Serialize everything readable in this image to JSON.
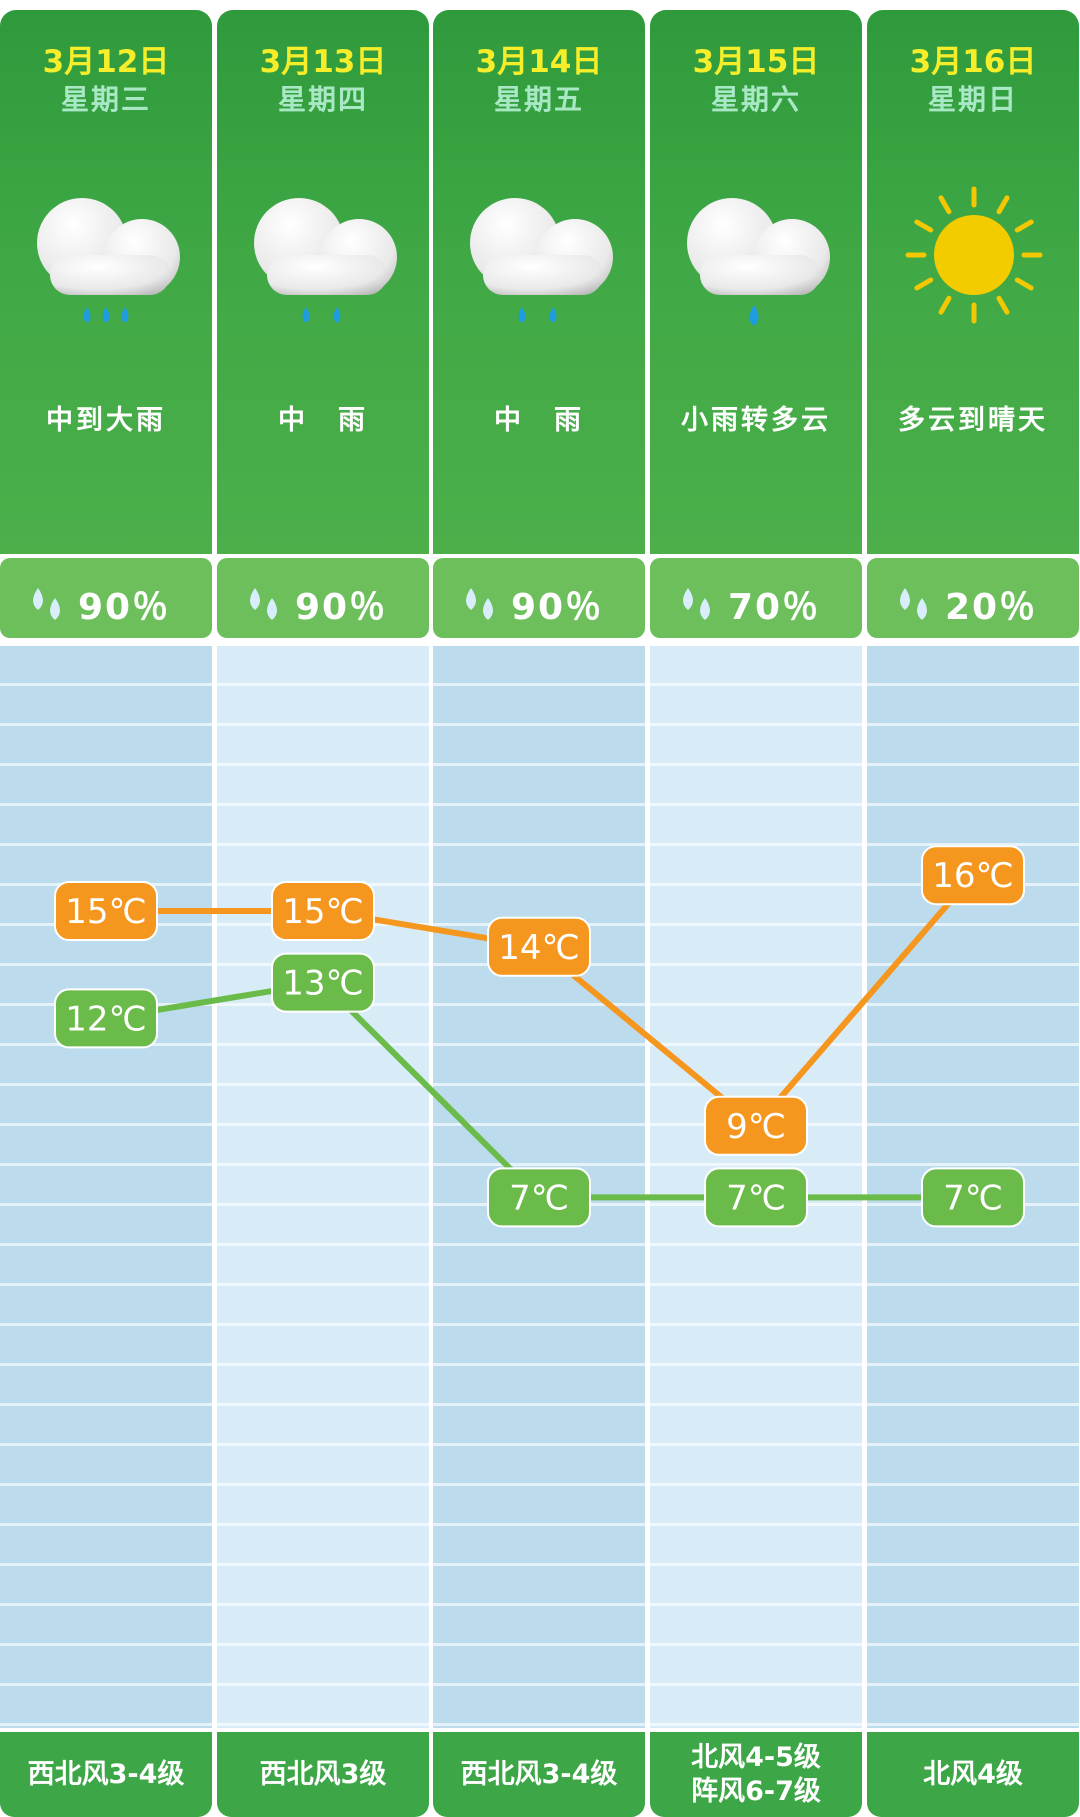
{
  "days": [
    {
      "date": "3月12日",
      "weekday": "星期三",
      "weather": "中到大雨",
      "icon": "cloud-heavy-rain-icon",
      "precip": "90％",
      "wind": [
        "西北风3-4级"
      ]
    },
    {
      "date": "3月13日",
      "weekday": "星期四",
      "weather": "中　雨",
      "icon": "cloud-rain-icon",
      "precip": "90％",
      "wind": [
        "西北风3级"
      ]
    },
    {
      "date": "3月14日",
      "weekday": "星期五",
      "weather": "中　雨",
      "icon": "cloud-rain-icon",
      "precip": "90％",
      "wind": [
        "西北风3-4级"
      ]
    },
    {
      "date": "3月15日",
      "weekday": "星期六",
      "weather": "小雨转多云",
      "icon": "cloud-light-rain-icon",
      "precip": "70％",
      "wind": [
        "北风4-5级",
        "阵风6-7级"
      ]
    },
    {
      "date": "3月16日",
      "weekday": "星期日",
      "weather": "多云到晴天",
      "icon": "sun-icon",
      "precip": "20％",
      "wind": [
        "北风4级"
      ]
    }
  ],
  "chart_data": {
    "type": "line",
    "categories": [
      "3月12日",
      "3月13日",
      "3月14日",
      "3月15日",
      "3月16日"
    ],
    "series": [
      {
        "values": [
          15,
          15,
          14,
          9,
          16
        ],
        "labels": [
          "15℃",
          "15℃",
          "14℃",
          "9℃",
          "16℃"
        ],
        "color": "#f5961e"
      },
      {
        "values": [
          12,
          13,
          7,
          7,
          7
        ],
        "labels": [
          "12℃",
          "13℃",
          "7℃",
          "7℃",
          "7℃"
        ],
        "color": "#6bbb4a"
      }
    ],
    "unit": "℃",
    "grid": true
  },
  "colors": {
    "header_green": "#3fa845",
    "date_yellow": "#f6ee2a",
    "high": "#f5961e",
    "low": "#6bbb4a"
  }
}
